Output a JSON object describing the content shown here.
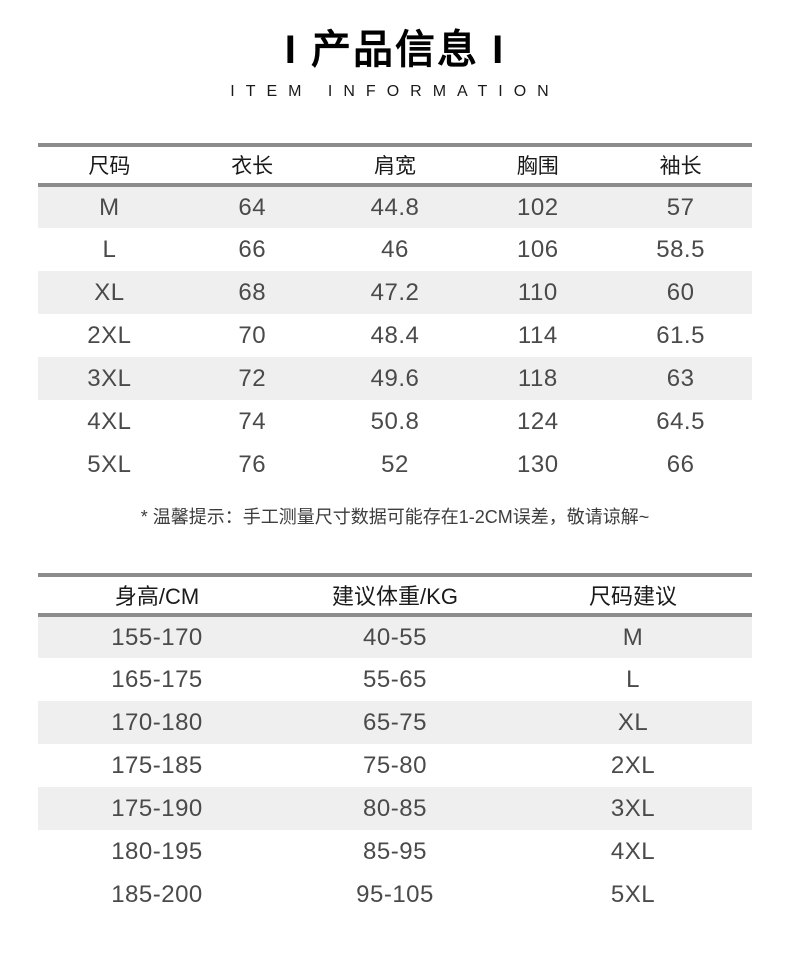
{
  "header": {
    "title": "I 产品信息 I",
    "subtitle": "ITEM INFORMATION"
  },
  "size_table": {
    "headers": [
      "尺码",
      "衣长",
      "肩宽",
      "胸围",
      "袖长"
    ],
    "rows": [
      [
        "M",
        "64",
        "44.8",
        "102",
        "57"
      ],
      [
        "L",
        "66",
        "46",
        "106",
        "58.5"
      ],
      [
        "XL",
        "68",
        "47.2",
        "110",
        "60"
      ],
      [
        "2XL",
        "70",
        "48.4",
        "114",
        "61.5"
      ],
      [
        "3XL",
        "72",
        "49.6",
        "118",
        "63"
      ],
      [
        "4XL",
        "74",
        "50.8",
        "124",
        "64.5"
      ],
      [
        "5XL",
        "76",
        "52",
        "130",
        "66"
      ]
    ]
  },
  "note": "* 温馨提示：手工测量尺寸数据可能存在1-2CM误差，敬请谅解~",
  "fit_table": {
    "headers": [
      "身高/CM",
      "建议体重/KG",
      "尺码建议"
    ],
    "rows": [
      [
        "155-170",
        "40-55",
        "M"
      ],
      [
        "165-175",
        "55-65",
        "L"
      ],
      [
        "170-180",
        "65-75",
        "XL"
      ],
      [
        "175-185",
        "75-80",
        "2XL"
      ],
      [
        "175-190",
        "80-85",
        "3XL"
      ],
      [
        "180-195",
        "85-95",
        "4XL"
      ],
      [
        "185-200",
        "95-105",
        "5XL"
      ]
    ]
  },
  "colors": {
    "row_stripe": "#efefef",
    "rule": "#8c8c8c",
    "title_text": "#000000",
    "header_text": "#1a1a1a",
    "cell_text": "#4a4a4a",
    "note_text": "#3d3d3d",
    "background": "#ffffff"
  }
}
